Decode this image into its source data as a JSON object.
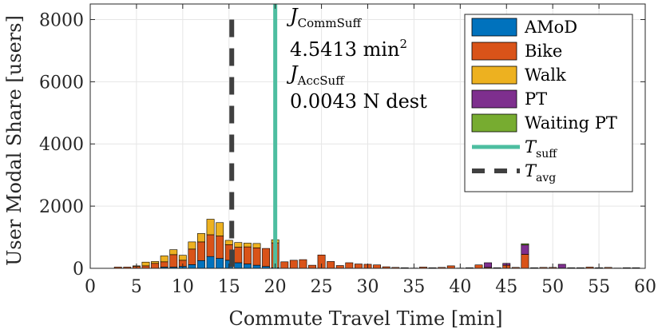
{
  "chart_data": {
    "type": "bar",
    "xlabel": "Commute Travel Time [min]",
    "ylabel": "User Modal Share [users]",
    "xlim": [
      0,
      60
    ],
    "ylim": [
      0,
      8500
    ],
    "xticks": [
      0,
      5,
      10,
      15,
      20,
      25,
      30,
      35,
      40,
      45,
      50,
      55,
      60
    ],
    "yticks": [
      0,
      2000,
      4000,
      6000,
      8000
    ],
    "grid": true,
    "legend_position": "top-right",
    "colors": {
      "AMoD": "#0072BD",
      "Bike": "#D95319",
      "Walk": "#EDB120",
      "PT": "#7E2F8E",
      "Waiting PT": "#77AC30",
      "T_suff": "#4DBEA0",
      "T_avg": "#404040"
    },
    "x": [
      3,
      4,
      5,
      6,
      7,
      8,
      9,
      10,
      11,
      12,
      13,
      14,
      15,
      16,
      17,
      18,
      19,
      20,
      21,
      22,
      23,
      24,
      25,
      26,
      27,
      28,
      29,
      30,
      31,
      32,
      33,
      34,
      35,
      36,
      37,
      38,
      39,
      40,
      41,
      42,
      43,
      44,
      45,
      46,
      47,
      48,
      49,
      50,
      51,
      52,
      53,
      54,
      55,
      56,
      57,
      58,
      59
    ],
    "series": [
      {
        "name": "AMoD",
        "values": [
          0,
          0,
          0,
          0,
          0,
          40,
          40,
          60,
          120,
          250,
          380,
          320,
          260,
          180,
          140,
          100,
          60,
          20,
          0,
          0,
          0,
          0,
          0,
          0,
          0,
          0,
          0,
          0,
          0,
          0,
          0,
          0,
          0,
          0,
          0,
          0,
          0,
          0,
          0,
          0,
          0,
          0,
          0,
          0,
          0,
          0,
          0,
          0,
          0,
          0,
          0,
          0,
          0,
          0,
          0,
          0,
          0
        ]
      },
      {
        "name": "Bike",
        "values": [
          40,
          40,
          60,
          80,
          160,
          170,
          400,
          200,
          500,
          600,
          700,
          720,
          500,
          500,
          550,
          560,
          580,
          800,
          210,
          260,
          280,
          100,
          430,
          220,
          90,
          180,
          140,
          130,
          110,
          50,
          30,
          20,
          10,
          40,
          20,
          30,
          80,
          10,
          20,
          110,
          30,
          20,
          100,
          30,
          450,
          20,
          30,
          30,
          10,
          20,
          20,
          40,
          20,
          30,
          10,
          20,
          20
        ]
      },
      {
        "name": "Walk",
        "values": [
          0,
          0,
          20,
          120,
          60,
          190,
          160,
          160,
          230,
          270,
          500,
          430,
          140,
          150,
          120,
          140,
          0,
          100,
          0,
          0,
          0,
          0,
          0,
          0,
          0,
          0,
          0,
          0,
          0,
          0,
          0,
          0,
          0,
          0,
          0,
          0,
          0,
          0,
          0,
          0,
          0,
          0,
          0,
          0,
          0,
          0,
          0,
          0,
          0,
          0,
          0,
          0,
          0,
          0,
          0,
          0,
          0
        ]
      },
      {
        "name": "PT",
        "values": [
          0,
          0,
          0,
          0,
          0,
          0,
          0,
          0,
          0,
          0,
          0,
          0,
          0,
          0,
          0,
          0,
          0,
          0,
          0,
          0,
          0,
          0,
          0,
          0,
          0,
          0,
          0,
          0,
          0,
          0,
          0,
          0,
          0,
          0,
          0,
          0,
          0,
          0,
          0,
          0,
          150,
          0,
          60,
          0,
          300,
          0,
          0,
          0,
          120,
          0,
          0,
          0,
          0,
          0,
          0,
          0,
          0
        ]
      },
      {
        "name": "Waiting PT",
        "values": [
          0,
          0,
          0,
          0,
          0,
          0,
          0,
          0,
          0,
          0,
          0,
          0,
          0,
          0,
          0,
          0,
          0,
          0,
          0,
          0,
          0,
          0,
          0,
          0,
          0,
          0,
          0,
          0,
          0,
          0,
          0,
          0,
          0,
          0,
          0,
          0,
          0,
          0,
          0,
          0,
          0,
          0,
          0,
          0,
          40,
          0,
          0,
          0,
          0,
          0,
          0,
          0,
          0,
          0,
          0,
          0,
          0
        ]
      }
    ],
    "vlines": [
      {
        "name": "T_suff",
        "x": 20
      },
      {
        "name": "T_avg",
        "x": 15.3
      }
    ],
    "annotations": {
      "comm_label": "J",
      "comm_sub": "CommSuff",
      "comm_value": "4.5413 min",
      "comm_value_sup": "2",
      "acc_label": "J",
      "acc_sub": "AccSuff",
      "acc_value": "0.0043 N dest"
    },
    "legend": [
      {
        "label": "AMoD",
        "sub": "",
        "kind": "patch",
        "color": "#0072BD"
      },
      {
        "label": "Bike",
        "sub": "",
        "kind": "patch",
        "color": "#D95319"
      },
      {
        "label": "Walk",
        "sub": "",
        "kind": "patch",
        "color": "#EDB120"
      },
      {
        "label": "PT",
        "sub": "",
        "kind": "patch",
        "color": "#7E2F8E"
      },
      {
        "label": "Waiting PT",
        "sub": "",
        "kind": "patch",
        "color": "#77AC30"
      },
      {
        "label": "T",
        "sub": "suff",
        "kind": "solid",
        "color": "#4DBEA0"
      },
      {
        "label": "T",
        "sub": "avg",
        "kind": "dashed",
        "color": "#404040"
      }
    ]
  }
}
